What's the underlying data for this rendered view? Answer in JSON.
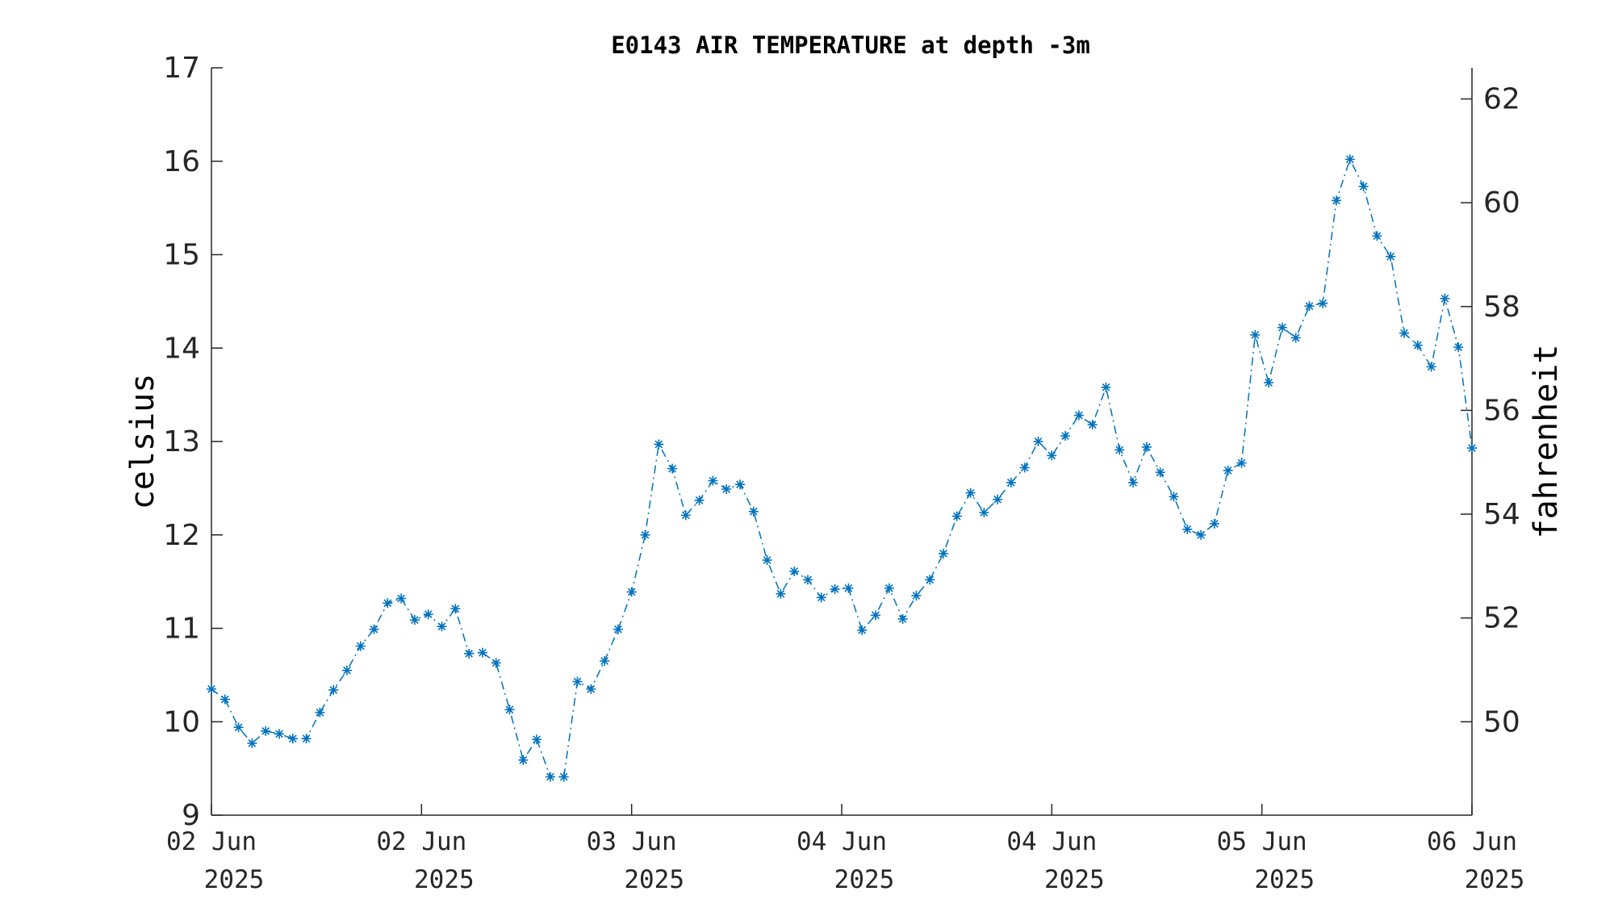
{
  "chart_data": {
    "type": "line",
    "title": "E0143 AIR TEMPERATURE at depth -3m",
    "ylabel": "celsius",
    "y2label": "fahrenheit",
    "ylim": [
      9,
      17
    ],
    "y2lim": [
      48.2,
      62.6
    ],
    "yticks": [
      "9",
      "10",
      "11",
      "12",
      "13",
      "14",
      "15",
      "16",
      "17"
    ],
    "y2ticks": [
      "50",
      "52",
      "54",
      "56",
      "58",
      "60",
      "62"
    ],
    "xticks": [
      {
        "line1": "02 Jun",
        "line2": "2025"
      },
      {
        "line1": "02 Jun",
        "line2": "2025"
      },
      {
        "line1": "03 Jun",
        "line2": "2025"
      },
      {
        "line1": "04 Jun",
        "line2": "2025"
      },
      {
        "line1": "04 Jun",
        "line2": "2025"
      },
      {
        "line1": "05 Jun",
        "line2": "2025"
      },
      {
        "line1": "06 Jun",
        "line2": "2025"
      }
    ],
    "grid": false,
    "marker": "asterisk",
    "line_style": "dash-dot",
    "series": [
      {
        "color": "#0072bd",
        "values": [
          10.35,
          10.24,
          9.94,
          9.77,
          9.9,
          9.87,
          9.82,
          9.82,
          10.1,
          10.34,
          10.55,
          10.81,
          10.99,
          11.27,
          11.32,
          11.09,
          11.15,
          11.02,
          11.21,
          10.73,
          10.74,
          10.63,
          10.13,
          9.59,
          9.81,
          9.41,
          9.41,
          10.43,
          10.35,
          10.65,
          10.99,
          11.39,
          12.0,
          12.97,
          12.71,
          12.21,
          12.37,
          12.58,
          12.49,
          12.54,
          12.25,
          11.73,
          11.37,
          11.61,
          11.52,
          11.33,
          11.42,
          11.43,
          10.98,
          11.14,
          11.43,
          11.1,
          11.35,
          11.52,
          11.8,
          12.2,
          12.45,
          12.24,
          12.38,
          12.56,
          12.72,
          13.0,
          12.85,
          13.06,
          13.28,
          13.18,
          13.58,
          12.91,
          12.56,
          12.94,
          12.67,
          12.41,
          12.06,
          12.0,
          12.12,
          12.69,
          12.77,
          14.14,
          13.63,
          14.22,
          14.11,
          14.45,
          14.48,
          15.58,
          16.02,
          15.73,
          15.2,
          14.98,
          14.16,
          14.03,
          13.8,
          14.53,
          14.01,
          12.93
        ]
      }
    ]
  }
}
